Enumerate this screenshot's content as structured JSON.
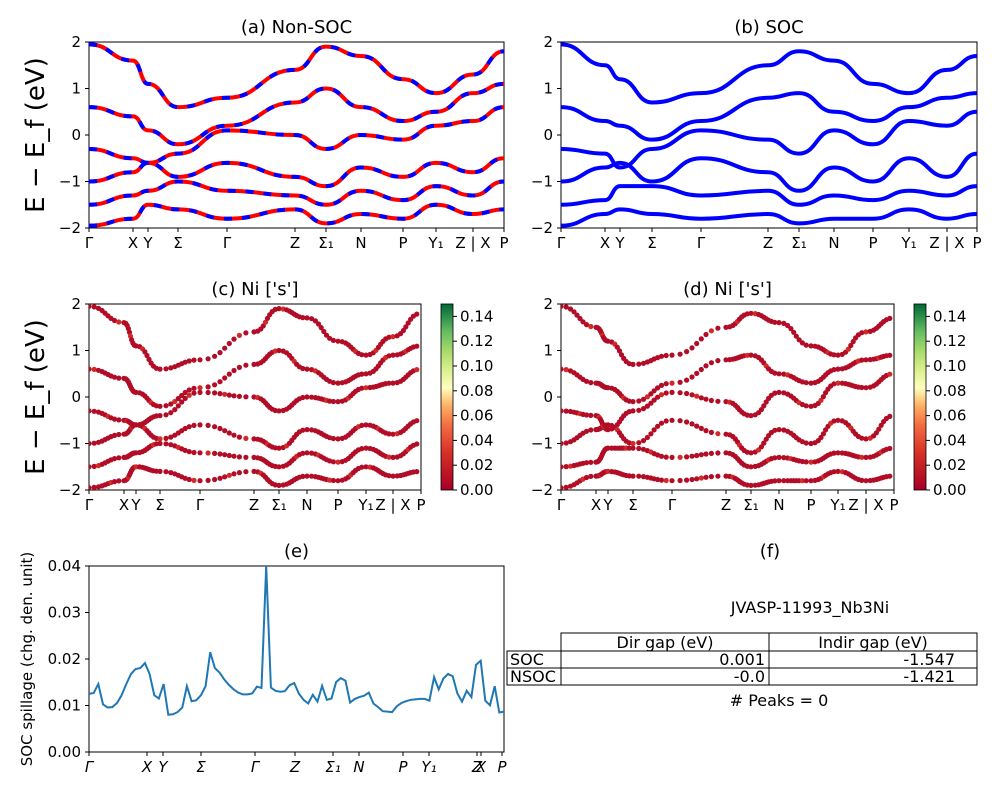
{
  "figure": {
    "name": "JVASP-11993_Nb3Ni"
  },
  "chart_data": [
    {
      "id": "a",
      "type": "line",
      "title": "(a) Non-SOC",
      "ylabel": "E − E_f (eV)",
      "ylim": [
        -2,
        2
      ],
      "yticks": [
        "2",
        "1",
        "0",
        "−1",
        "−2"
      ],
      "xticks": [
        "Γ",
        "X",
        "Y",
        "Σ",
        "Γ",
        "Z",
        "Σ₁",
        "N",
        "P",
        "Y₁",
        "Z | X",
        "P"
      ],
      "series": [
        {
          "color": "#ff0000",
          "style": "solid",
          "bands": [
            [
              1.95,
              1.6,
              1.1,
              0.6,
              0.8,
              1.4,
              1.9,
              1.7,
              1.2,
              0.9,
              1.3,
              1.8
            ],
            [
              0.6,
              0.4,
              0.1,
              -0.2,
              0.2,
              0.7,
              1.0,
              0.6,
              0.3,
              0.5,
              0.9,
              1.1
            ],
            [
              -0.3,
              -0.5,
              -0.6,
              -0.4,
              0.1,
              0.0,
              -0.3,
              0.0,
              -0.1,
              0.2,
              0.3,
              0.6
            ],
            [
              -1.0,
              -0.8,
              -0.6,
              -0.9,
              -0.6,
              -0.9,
              -1.1,
              -0.7,
              -0.9,
              -0.6,
              -0.8,
              -0.5
            ],
            [
              -1.5,
              -1.3,
              -1.2,
              -1.0,
              -1.2,
              -1.3,
              -1.5,
              -1.2,
              -1.4,
              -1.1,
              -1.3,
              -1.0
            ],
            [
              -1.95,
              -1.8,
              -1.5,
              -1.6,
              -1.8,
              -1.6,
              -1.9,
              -1.7,
              -1.8,
              -1.5,
              -1.7,
              -1.6
            ]
          ]
        },
        {
          "color": "#0000ff",
          "style": "dashed",
          "bands": [
            [
              1.95,
              1.6,
              1.1,
              0.6,
              0.8,
              1.4,
              1.9,
              1.7,
              1.2,
              0.9,
              1.3,
              1.8
            ],
            [
              0.6,
              0.4,
              0.1,
              -0.2,
              0.2,
              0.7,
              1.0,
              0.6,
              0.3,
              0.5,
              0.9,
              1.1
            ],
            [
              -0.3,
              -0.5,
              -0.6,
              -0.4,
              0.1,
              0.0,
              -0.3,
              0.0,
              -0.1,
              0.2,
              0.3,
              0.6
            ],
            [
              -1.0,
              -0.8,
              -0.6,
              -0.9,
              -0.6,
              -0.9,
              -1.1,
              -0.7,
              -0.9,
              -0.6,
              -0.8,
              -0.5
            ],
            [
              -1.5,
              -1.3,
              -1.2,
              -1.0,
              -1.2,
              -1.3,
              -1.5,
              -1.2,
              -1.4,
              -1.1,
              -1.3,
              -1.0
            ],
            [
              -1.95,
              -1.8,
              -1.5,
              -1.6,
              -1.8,
              -1.6,
              -1.9,
              -1.7,
              -1.8,
              -1.5,
              -1.7,
              -1.6
            ]
          ]
        }
      ]
    },
    {
      "id": "b",
      "type": "line",
      "title": "(b) SOC",
      "ylim": [
        -2,
        2
      ],
      "yticks": [
        "2",
        "1",
        "0",
        "−1",
        "−2"
      ],
      "xticks": [
        "Γ",
        "X",
        "Y",
        "Σ",
        "Γ",
        "Z",
        "Σ₁",
        "N",
        "P",
        "Y₁",
        "Z | X",
        "P"
      ],
      "series": [
        {
          "color": "#0000ff",
          "style": "solid",
          "bands": [
            [
              1.95,
              1.5,
              1.2,
              0.7,
              0.9,
              1.5,
              1.8,
              1.6,
              1.1,
              0.9,
              1.4,
              1.7
            ],
            [
              0.6,
              0.3,
              0.2,
              -0.1,
              0.3,
              0.8,
              0.9,
              0.5,
              0.3,
              0.6,
              0.8,
              0.9
            ],
            [
              -0.3,
              -0.4,
              -0.7,
              -0.3,
              0.1,
              -0.1,
              -0.4,
              0.1,
              -0.2,
              0.3,
              0.2,
              0.5
            ],
            [
              -1.0,
              -0.7,
              -0.6,
              -1.0,
              -0.5,
              -0.8,
              -1.2,
              -0.7,
              -1.0,
              -0.5,
              -0.9,
              -0.4
            ],
            [
              -1.5,
              -1.4,
              -1.1,
              -1.1,
              -1.3,
              -1.2,
              -1.5,
              -1.3,
              -1.4,
              -1.2,
              -1.3,
              -1.1
            ],
            [
              -1.95,
              -1.7,
              -1.6,
              -1.7,
              -1.8,
              -1.7,
              -1.9,
              -1.8,
              -1.8,
              -1.6,
              -1.8,
              -1.7
            ]
          ]
        }
      ]
    },
    {
      "id": "c",
      "type": "scatter",
      "title": "(c)  Ni ['s']",
      "ylabel": "E − E_f (eV)",
      "ylim": [
        -2,
        2
      ],
      "yticks": [
        "2",
        "1",
        "0",
        "−1",
        "−2"
      ],
      "xticks": [
        "Γ",
        "X",
        "Y",
        "Σ",
        "Γ",
        "Z",
        "Σ₁",
        "N",
        "P",
        "Y₁",
        "Z | X",
        "P"
      ],
      "colorbar": {
        "range": [
          0.0,
          0.15
        ],
        "ticks": [
          "0.14",
          "0.12",
          "0.10",
          "0.08",
          "0.06",
          "0.04",
          "0.02",
          "0.00"
        ],
        "cmap": "RdYlGn"
      },
      "bands": [
        [
          1.95,
          1.6,
          1.1,
          0.6,
          0.8,
          1.4,
          1.9,
          1.7,
          1.2,
          0.9,
          1.3,
          1.8
        ],
        [
          0.6,
          0.4,
          0.1,
          -0.2,
          0.2,
          0.7,
          1.0,
          0.6,
          0.3,
          0.5,
          0.9,
          1.1
        ],
        [
          -0.3,
          -0.5,
          -0.6,
          -0.4,
          0.1,
          0.0,
          -0.3,
          0.0,
          -0.1,
          0.2,
          0.3,
          0.6
        ],
        [
          -1.0,
          -0.8,
          -0.6,
          -0.9,
          -0.6,
          -0.9,
          -1.1,
          -0.7,
          -0.9,
          -0.6,
          -0.8,
          -0.5
        ],
        [
          -1.5,
          -1.3,
          -1.2,
          -1.0,
          -1.2,
          -1.3,
          -1.5,
          -1.2,
          -1.4,
          -1.1,
          -1.3,
          -1.0
        ],
        [
          -1.95,
          -1.8,
          -1.5,
          -1.6,
          -1.8,
          -1.6,
          -1.9,
          -1.7,
          -1.8,
          -1.5,
          -1.7,
          -1.6
        ]
      ]
    },
    {
      "id": "d",
      "type": "scatter",
      "title": "(d) Ni ['s']",
      "ylim": [
        -2,
        2
      ],
      "yticks": [
        "2",
        "1",
        "0",
        "−1",
        "−2"
      ],
      "xticks": [
        "Γ",
        "X",
        "Y",
        "Σ",
        "Γ",
        "Z",
        "Σ₁",
        "N",
        "P",
        "Y₁",
        "Z | X",
        "P"
      ],
      "colorbar": {
        "range": [
          0.0,
          0.15
        ],
        "ticks": [
          "0.14",
          "0.12",
          "0.10",
          "0.08",
          "0.06",
          "0.04",
          "0.02",
          "0.00"
        ],
        "cmap": "RdYlGn"
      },
      "bands": [
        [
          1.95,
          1.5,
          1.2,
          0.7,
          0.9,
          1.5,
          1.8,
          1.6,
          1.1,
          0.9,
          1.4,
          1.7
        ],
        [
          0.6,
          0.3,
          0.2,
          -0.1,
          0.3,
          0.8,
          0.9,
          0.5,
          0.3,
          0.6,
          0.8,
          0.9
        ],
        [
          -0.3,
          -0.4,
          -0.7,
          -0.3,
          0.1,
          -0.1,
          -0.4,
          0.1,
          -0.2,
          0.3,
          0.2,
          0.5
        ],
        [
          -1.0,
          -0.7,
          -0.6,
          -1.0,
          -0.5,
          -0.8,
          -1.2,
          -0.7,
          -1.0,
          -0.5,
          -0.9,
          -0.4
        ],
        [
          -1.5,
          -1.4,
          -1.1,
          -1.1,
          -1.3,
          -1.2,
          -1.5,
          -1.3,
          -1.4,
          -1.2,
          -1.3,
          -1.1
        ],
        [
          -1.95,
          -1.7,
          -1.6,
          -1.7,
          -1.8,
          -1.7,
          -1.9,
          -1.8,
          -1.8,
          -1.6,
          -1.8,
          -1.7
        ]
      ]
    },
    {
      "id": "e",
      "type": "line",
      "title": "(e)",
      "ylabel": "SOC spillage (chg. den. unit)",
      "ylim": [
        0,
        0.041
      ],
      "yticks": [
        "0.04",
        "0.03",
        "0.02",
        "0.01",
        "0.00"
      ],
      "xticks": [
        "Γ",
        "X",
        "Y",
        "Σ",
        "Γ",
        "Z",
        "Σ₁",
        "N",
        "P",
        "Y₁",
        "Z",
        "X",
        "P"
      ],
      "series": [
        {
          "color": "#1f77b4",
          "values": [
            0.0128,
            0.013,
            0.015,
            0.0105,
            0.0098,
            0.0099,
            0.0108,
            0.0125,
            0.015,
            0.0172,
            0.0183,
            0.0185,
            0.0196,
            0.0172,
            0.0125,
            0.0118,
            0.015,
            0.0082,
            0.0083,
            0.0088,
            0.0098,
            0.0145,
            0.0112,
            0.0114,
            0.0125,
            0.0145,
            0.022,
            0.0185,
            0.0175,
            0.016,
            0.0148,
            0.0138,
            0.0131,
            0.0127,
            0.0127,
            0.0129,
            0.0144,
            0.0141,
            0.041,
            0.0142,
            0.0135,
            0.0133,
            0.0134,
            0.0147,
            0.0152,
            0.0129,
            0.0115,
            0.0107,
            0.0126,
            0.0111,
            0.0146,
            0.0115,
            0.0118,
            0.0154,
            0.0163,
            0.0157,
            0.0109,
            0.0117,
            0.0121,
            0.0124,
            0.0131,
            0.0107,
            0.0099,
            0.009,
            0.0089,
            0.0088,
            0.0101,
            0.0108,
            0.0112,
            0.0115,
            0.0116,
            0.0117,
            0.0117,
            0.0113,
            0.0165,
            0.0138,
            0.0162,
            0.0172,
            0.0167,
            0.0129,
            0.0111,
            0.0135,
            0.0121,
            0.0192,
            0.0201,
            0.0113,
            0.0103,
            0.0145,
            0.0087,
            0.0089
          ]
        }
      ]
    }
  ],
  "panel_f": {
    "title": "(f)",
    "material": "JVASP-11993_Nb3Ni",
    "headers": [
      "Dir gap (eV)",
      "Indir gap (eV)"
    ],
    "rows": [
      {
        "label": "SOC",
        "dir": "0.001",
        "indir": "-1.547"
      },
      {
        "label": "NSOC",
        "dir": "-0.0",
        "indir": "-1.421"
      }
    ],
    "peaks": "# Peaks = 0"
  }
}
